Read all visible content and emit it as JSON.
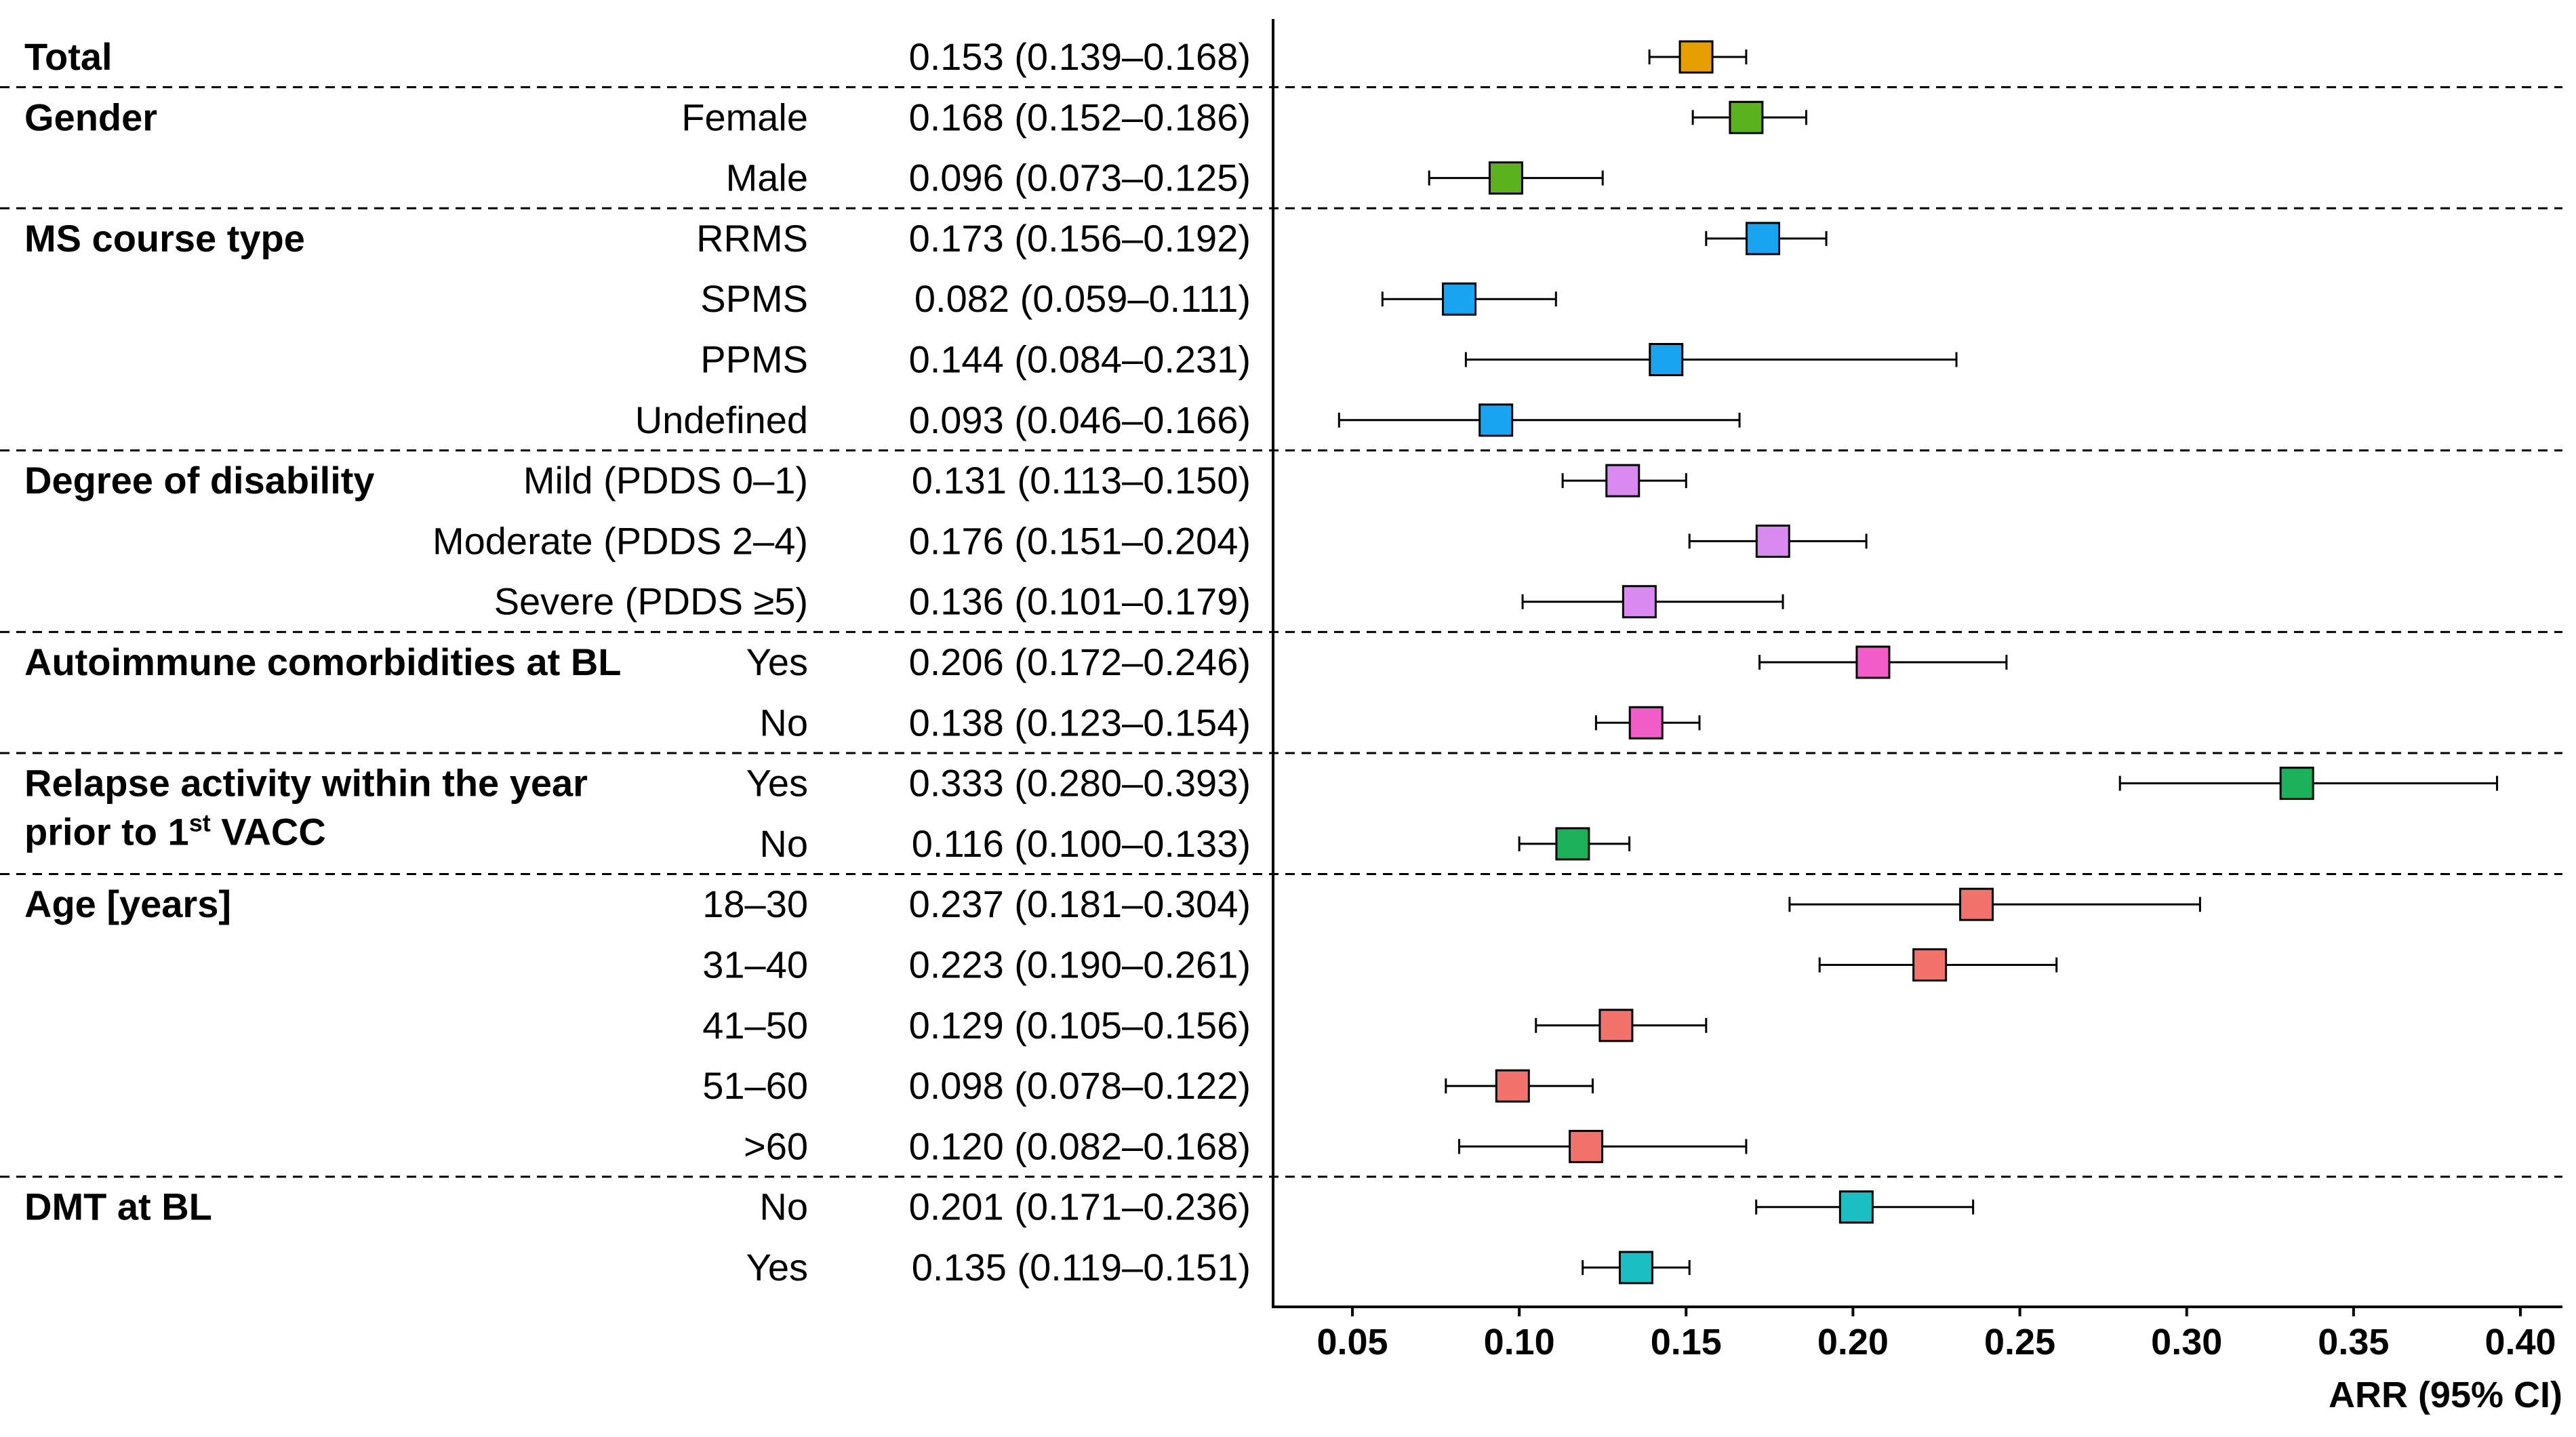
{
  "chart_data": {
    "type": "forest",
    "xlabel": "ARR (95% CI)",
    "xlim": [
      0.035,
      0.405
    ],
    "xticks": [
      "0.05",
      "0.10",
      "0.15",
      "0.20",
      "0.25",
      "0.30",
      "0.35",
      "0.40"
    ],
    "groups": [
      {
        "label": "Total",
        "color": "#E69F00",
        "rows": [
          {
            "label": "",
            "text": "0.153 (0.139–0.168)",
            "value": 0.153,
            "lower": 0.139,
            "upper": 0.168
          }
        ]
      },
      {
        "label": "Gender",
        "color": "#5CB21E",
        "rows": [
          {
            "label": "Female",
            "text": "0.168 (0.152–0.186)",
            "value": 0.168,
            "lower": 0.152,
            "upper": 0.186
          },
          {
            "label": "Male",
            "text": "0.096 (0.073–0.125)",
            "value": 0.096,
            "lower": 0.073,
            "upper": 0.125
          }
        ]
      },
      {
        "label": "MS course type",
        "color": "#1AA3F0",
        "rows": [
          {
            "label": "RRMS",
            "text": "0.173 (0.156–0.192)",
            "value": 0.173,
            "lower": 0.156,
            "upper": 0.192
          },
          {
            "label": "SPMS",
            "text": "0.082 (0.059–0.111)",
            "value": 0.082,
            "lower": 0.059,
            "upper": 0.111
          },
          {
            "label": "PPMS",
            "text": "0.144 (0.084–0.231)",
            "value": 0.144,
            "lower": 0.084,
            "upper": 0.231
          },
          {
            "label": "Undefined",
            "text": "0.093 (0.046–0.166)",
            "value": 0.093,
            "lower": 0.046,
            "upper": 0.166
          }
        ]
      },
      {
        "label": "Degree of disability",
        "color": "#D98AF0",
        "rows": [
          {
            "label": "Mild (PDDS 0–1)",
            "text": "0.131 (0.113–0.150)",
            "value": 0.131,
            "lower": 0.113,
            "upper": 0.15
          },
          {
            "label": "Moderate (PDDS 2–4)",
            "text": "0.176 (0.151–0.204)",
            "value": 0.176,
            "lower": 0.151,
            "upper": 0.204
          },
          {
            "label": "Severe (PDDS ≥5)",
            "text": "0.136 (0.101–0.179)",
            "value": 0.136,
            "lower": 0.101,
            "upper": 0.179
          }
        ]
      },
      {
        "label": "Autoimmune comorbidities at BL",
        "color": "#F25CC9",
        "rows": [
          {
            "label": "Yes",
            "text": "0.206 (0.172–0.246)",
            "value": 0.206,
            "lower": 0.172,
            "upper": 0.246
          },
          {
            "label": "No",
            "text": "0.138 (0.123–0.154)",
            "value": 0.138,
            "lower": 0.123,
            "upper": 0.154
          }
        ]
      },
      {
        "label": "Relapse activity within the year",
        "label_line2_prefix": "prior to 1",
        "label_line2_sup": "st",
        "label_line2_suffix": " VACC",
        "color": "#1CB05A",
        "rows": [
          {
            "label": "Yes",
            "text": "0.333 (0.280–0.393)",
            "value": 0.333,
            "lower": 0.28,
            "upper": 0.393
          },
          {
            "label": "No",
            "text": "0.116 (0.100–0.133)",
            "value": 0.116,
            "lower": 0.1,
            "upper": 0.133
          }
        ]
      },
      {
        "label": "Age [years]",
        "color": "#F2736B",
        "rows": [
          {
            "label": "18–30",
            "text": "0.237 (0.181–0.304)",
            "value": 0.237,
            "lower": 0.181,
            "upper": 0.304
          },
          {
            "label": "31–40",
            "text": "0.223 (0.190–0.261)",
            "value": 0.223,
            "lower": 0.19,
            "upper": 0.261
          },
          {
            "label": "41–50",
            "text": "0.129 (0.105–0.156)",
            "value": 0.129,
            "lower": 0.105,
            "upper": 0.156
          },
          {
            "label": "51–60",
            "text": "0.098 (0.078–0.122)",
            "value": 0.098,
            "lower": 0.078,
            "upper": 0.122
          },
          {
            "label": ">60",
            "text": "0.120 (0.082–0.168)",
            "value": 0.12,
            "lower": 0.082,
            "upper": 0.168
          }
        ]
      },
      {
        "label": "DMT at BL",
        "color": "#1ABFC4",
        "rows": [
          {
            "label": "No",
            "text": "0.201 (0.171–0.236)",
            "value": 0.201,
            "lower": 0.171,
            "upper": 0.236
          },
          {
            "label": "Yes",
            "text": "0.135 (0.119–0.151)",
            "value": 0.135,
            "lower": 0.119,
            "upper": 0.151
          }
        ]
      }
    ]
  }
}
